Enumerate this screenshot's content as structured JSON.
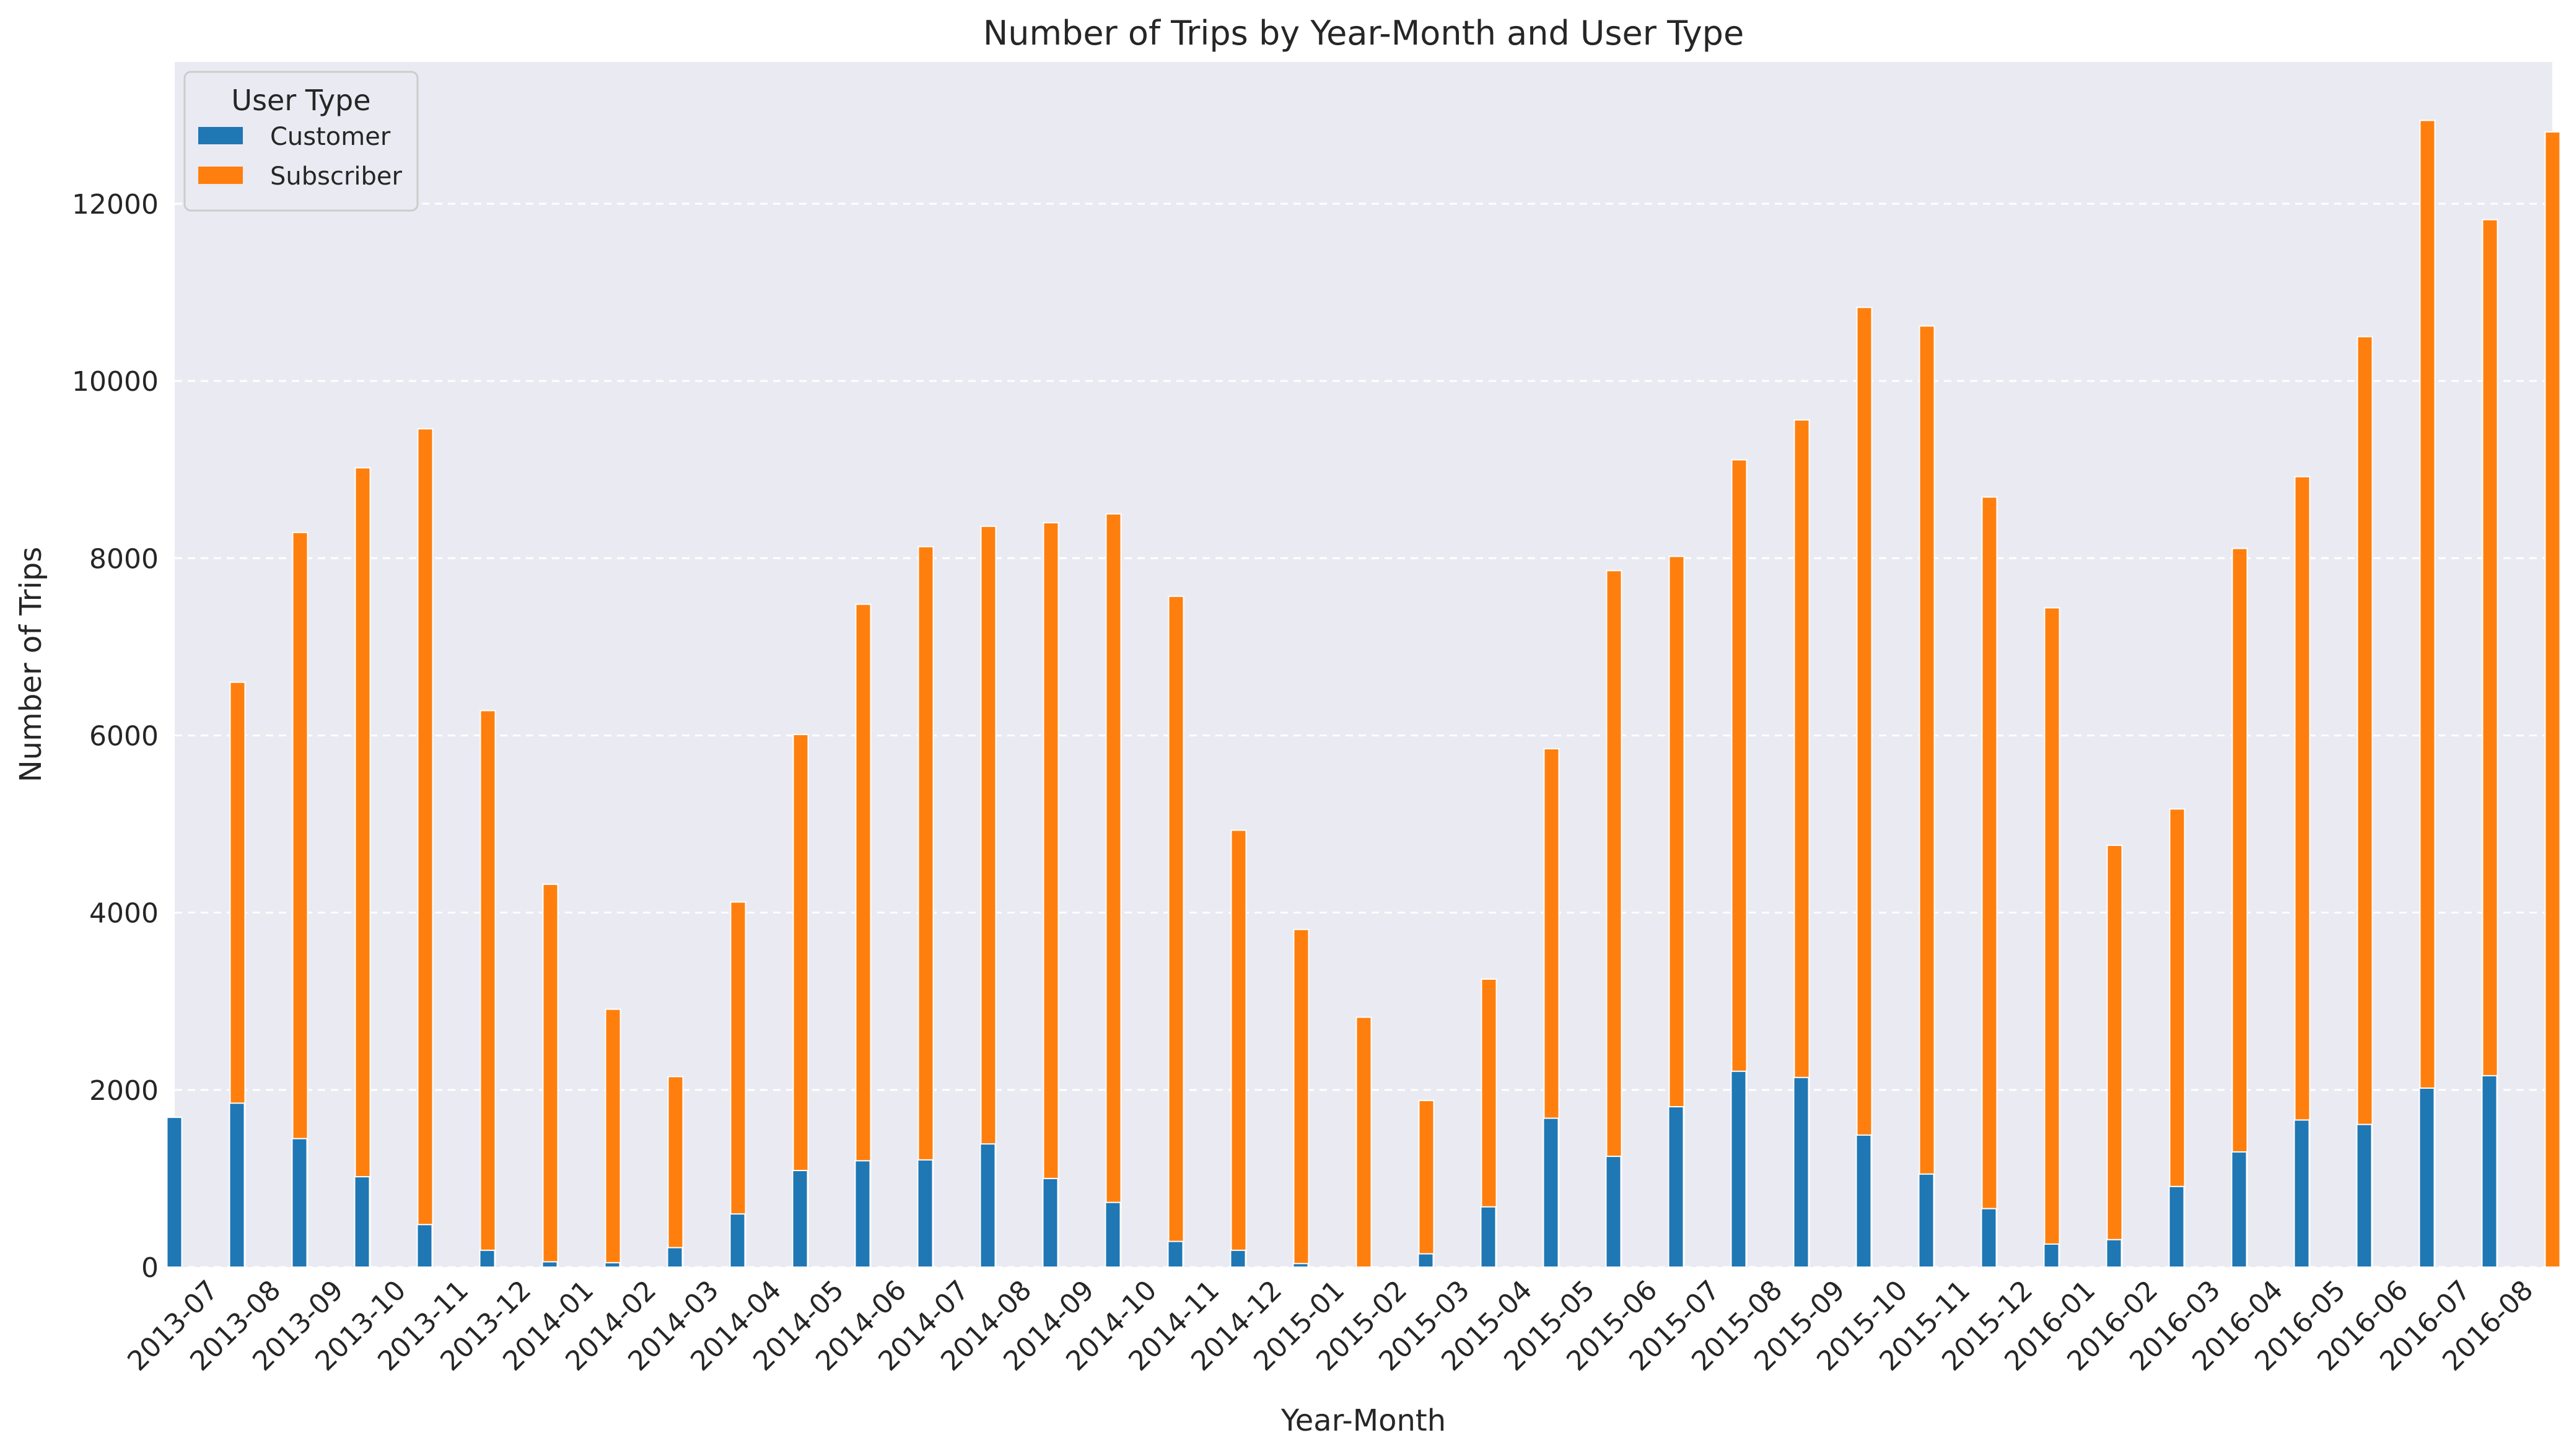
{
  "chart_data": {
    "type": "bar",
    "title": "Number of Trips by Year-Month and User Type",
    "xlabel": "Year-Month",
    "ylabel": "Number of Trips",
    "ylim": [
      0,
      13600
    ],
    "yticks": [
      0,
      2000,
      4000,
      6000,
      8000,
      10000,
      12000
    ],
    "grid": "horizontal dashed",
    "legend": {
      "title": "User Type",
      "position": "top-left"
    },
    "categories": [
      "2013-07",
      "2013-08",
      "2013-09",
      "2013-10",
      "2013-11",
      "2013-12",
      "2014-01",
      "2014-02",
      "2014-03",
      "2014-04",
      "2014-05",
      "2014-06",
      "2014-07",
      "2014-08",
      "2014-09",
      "2014-10",
      "2014-11",
      "2014-12",
      "2015-01",
      "2015-02",
      "2015-03",
      "2015-04",
      "2015-05",
      "2015-06",
      "2015-07",
      "2015-08",
      "2015-09",
      "2015-10",
      "2015-11",
      "2015-12",
      "2016-01",
      "2016-02",
      "2016-03",
      "2016-04",
      "2016-05",
      "2016-06",
      "2016-07",
      "2016-08"
    ],
    "series": [
      {
        "name": "Customer",
        "color": "#1f77b4",
        "values": [
          1690,
          1850,
          1450,
          1020,
          480,
          190,
          60,
          50,
          220,
          600,
          1090,
          1200,
          1210,
          1390,
          1000,
          730,
          290,
          190,
          40,
          0,
          150,
          680,
          1680,
          1250,
          1810,
          2210,
          2140,
          1490,
          1050,
          660,
          260,
          310,
          910,
          1300,
          1660,
          1610,
          2020,
          2160
        ]
      },
      {
        "name": "Subscriber",
        "color": "#ff7f0e",
        "values": [
          6600,
          8290,
          9020,
          9460,
          6280,
          4320,
          2910,
          2150,
          4120,
          6010,
          7480,
          8130,
          8360,
          8400,
          8500,
          7570,
          4930,
          3810,
          2820,
          1880,
          3250,
          5850,
          7860,
          8020,
          9110,
          9560,
          10830,
          10620,
          8690,
          7440,
          4760,
          5170,
          8110,
          8920,
          10500,
          12940,
          11820,
          12810
        ]
      }
    ]
  }
}
